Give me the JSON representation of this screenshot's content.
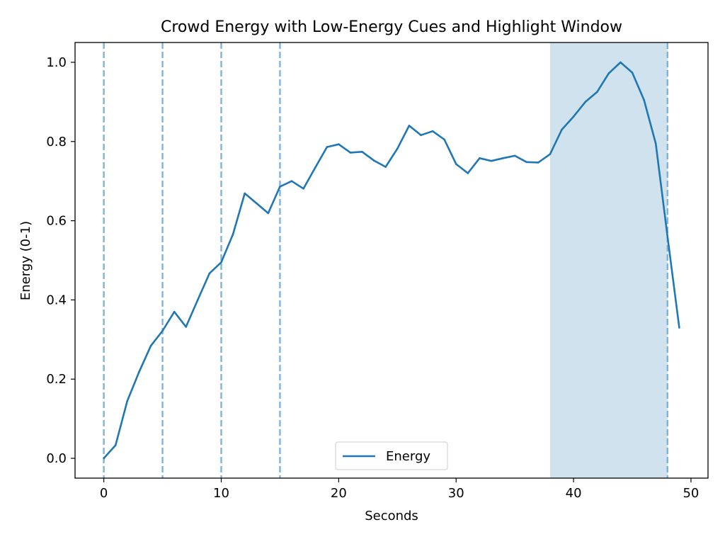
{
  "chart_data": {
    "type": "line",
    "title": "Crowd Energy with Low-Energy Cues and Highlight Window",
    "xlabel": "Seconds",
    "ylabel": "Energy (0-1)",
    "xlim": [
      -2.45,
      51.45
    ],
    "ylim": [
      -0.05,
      1.05
    ],
    "xticks": [
      0,
      10,
      20,
      30,
      40,
      50
    ],
    "yticks": [
      0.0,
      0.2,
      0.4,
      0.6,
      0.8,
      1.0
    ],
    "xtick_labels": [
      "0",
      "10",
      "20",
      "30",
      "40",
      "50"
    ],
    "ytick_labels": [
      "0.0",
      "0.2",
      "0.4",
      "0.6",
      "0.8",
      "1.0"
    ],
    "grid": false,
    "legend_position": "lower center",
    "series": [
      {
        "name": "Energy",
        "color": "#1f77b4",
        "x": [
          0,
          1,
          2,
          3,
          4,
          5,
          6,
          7,
          8,
          9,
          10,
          11,
          12,
          13,
          14,
          15,
          16,
          17,
          18,
          19,
          20,
          21,
          22,
          23,
          24,
          25,
          26,
          27,
          28,
          29,
          30,
          31,
          32,
          33,
          34,
          35,
          36,
          37,
          38,
          39,
          40,
          41,
          42,
          43,
          44,
          45,
          46,
          47,
          48,
          49
        ],
        "y": [
          0.0,
          0.033,
          0.145,
          0.218,
          0.284,
          0.322,
          0.37,
          0.332,
          0.4,
          0.467,
          0.495,
          0.566,
          0.669,
          0.644,
          0.619,
          0.686,
          0.7,
          0.681,
          0.734,
          0.786,
          0.793,
          0.772,
          0.774,
          0.752,
          0.736,
          0.782,
          0.84,
          0.816,
          0.826,
          0.805,
          0.743,
          0.72,
          0.758,
          0.751,
          0.758,
          0.764,
          0.748,
          0.747,
          0.768,
          0.83,
          0.863,
          0.9,
          0.925,
          0.972,
          1.0,
          0.974,
          0.905,
          0.795,
          0.56,
          0.33
        ]
      }
    ],
    "cue_lines": {
      "x": [
        0,
        5,
        10,
        15,
        48
      ],
      "color": "#7fb4d8"
    },
    "highlight_window": {
      "x_start": 38,
      "x_end": 48,
      "color": "#d0e2ee"
    }
  }
}
